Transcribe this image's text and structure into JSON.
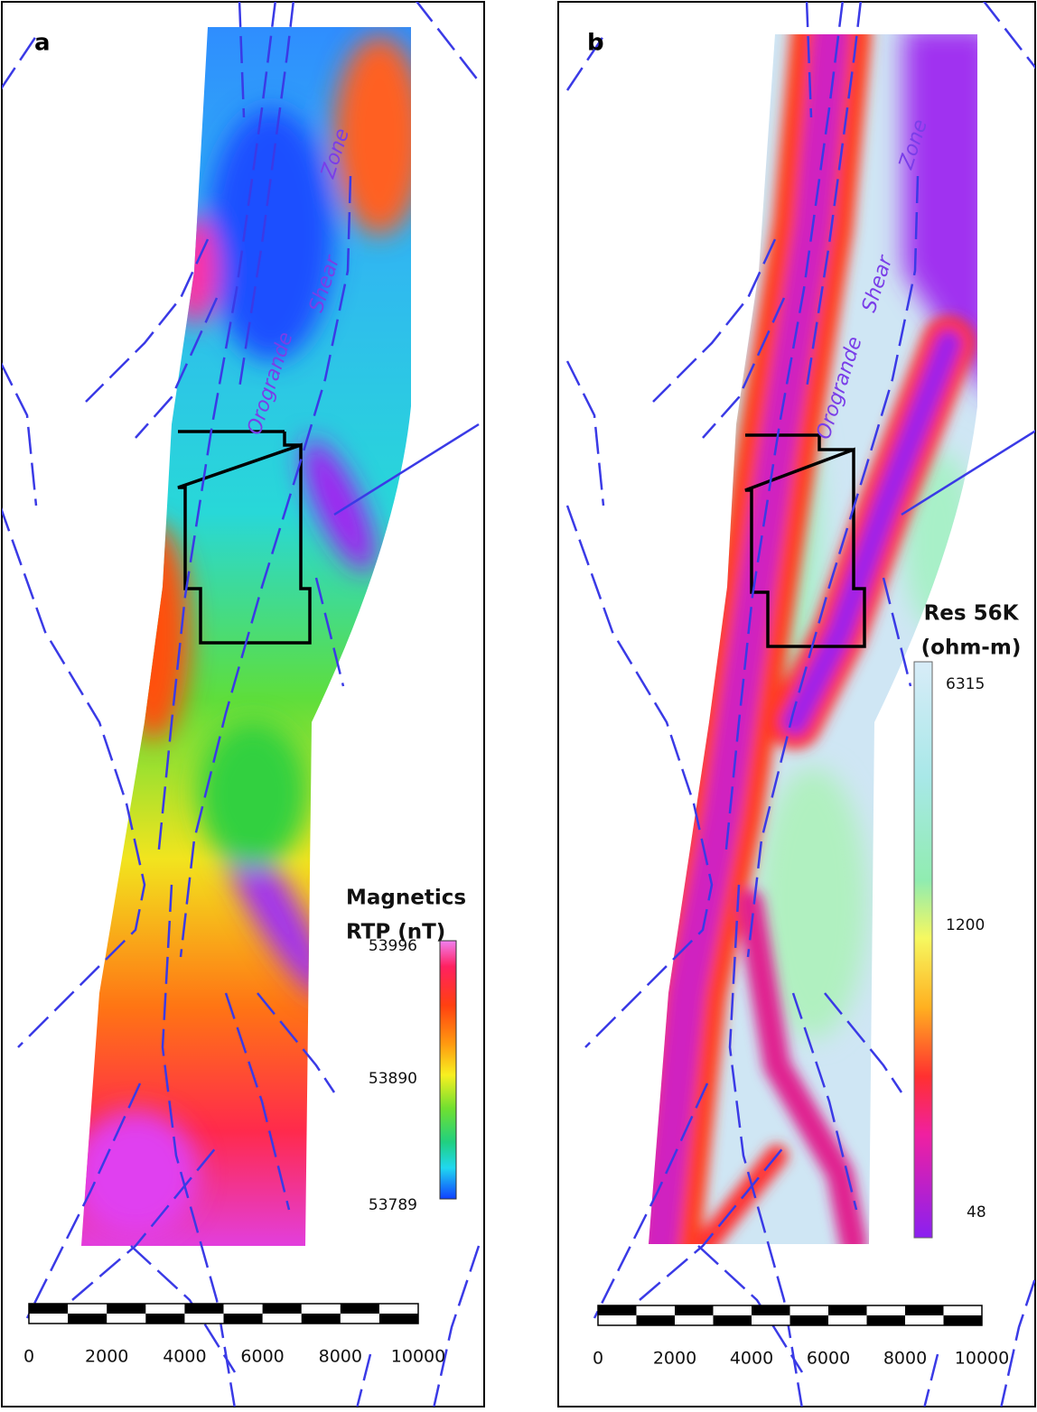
{
  "panels": [
    {
      "label": "a",
      "annotations": [
        "Orogrande",
        "Shear",
        "Zone"
      ],
      "legend": {
        "title": [
          "Magnetics",
          "RTP (nT)"
        ],
        "ticks": [
          53996,
          53890,
          53789
        ]
      },
      "scale_bar": [
        0,
        2000,
        4000,
        6000,
        8000,
        10000
      ]
    },
    {
      "label": "b",
      "annotations": [
        "Orogrande",
        "Shear",
        "Zone"
      ],
      "legend": {
        "title": [
          "Res 56K",
          "(ohm-m)"
        ],
        "ticks": [
          6315,
          1200,
          48
        ]
      },
      "scale_bar": [
        0,
        2000,
        4000,
        6000,
        8000,
        10000
      ]
    }
  ]
}
